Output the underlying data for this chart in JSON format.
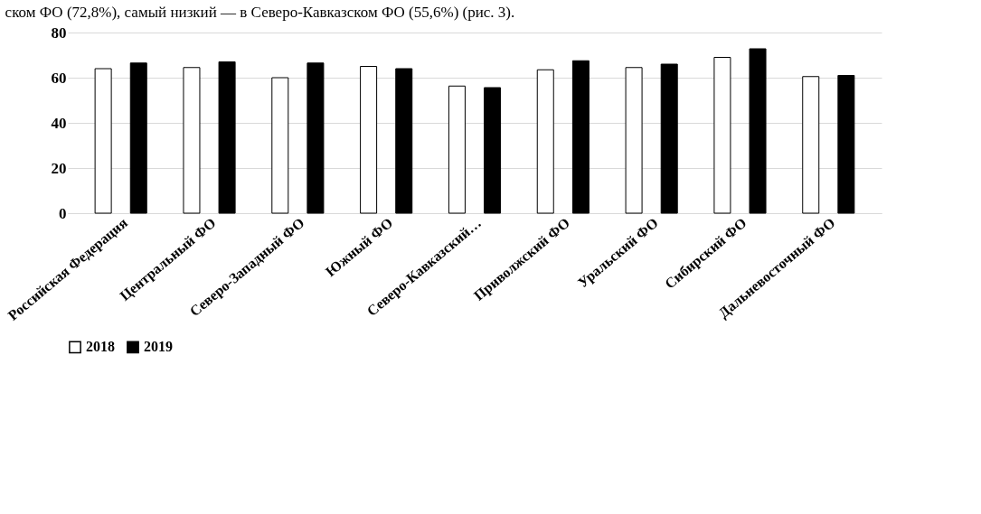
{
  "chart_data": {
    "type": "bar",
    "annotations": [
      "ском ФО (72,8%), самый низкий — в Северо-Кавказском ФО (55,6%) (рис. 3)."
    ],
    "categories": [
      "Российская Федерация",
      "Центральный ФО",
      "Северо-Западный ФО",
      "Южный ФО",
      "Северо-Кавказский…",
      "Приволжский ФО",
      "Уральский ФО",
      "Сибирский ФО",
      "Дальневосточный ФО"
    ],
    "series": [
      {
        "name": "2018",
        "color": "#ffffff",
        "values": [
          64,
          64.5,
          60,
          65,
          56.3,
          63.5,
          64.5,
          69,
          60.5
        ]
      },
      {
        "name": "2019",
        "color": "#000000",
        "values": [
          66.5,
          67,
          66.5,
          64,
          55.6,
          67.5,
          66,
          72.8,
          61
        ]
      }
    ],
    "ylim": [
      0,
      80
    ],
    "yticks": [
      0,
      20,
      40,
      60,
      80
    ],
    "grid": "y",
    "legend": "bottom"
  }
}
